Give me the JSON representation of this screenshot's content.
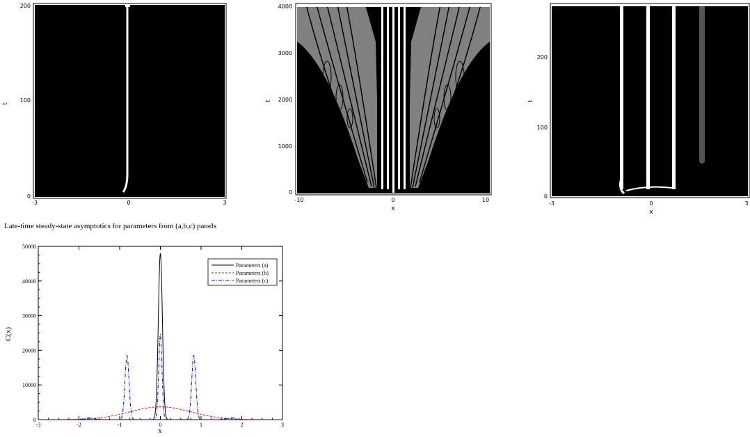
{
  "caption": "Late-time steady-state asymptotics for parameters from (a,b,c) panels",
  "panels": {
    "a": {
      "ylabel": "t",
      "xticks": [
        "-3",
        "0",
        "3"
      ],
      "yticks": [
        "0",
        "100",
        "200"
      ]
    },
    "b": {
      "xlabel": "x",
      "ylabel": "t",
      "xticks": [
        "-10",
        "0",
        "10"
      ],
      "yticks": [
        "0",
        "1000",
        "2000",
        "3000",
        "4000"
      ]
    },
    "c": {
      "xlabel": "x",
      "ylabel": "t",
      "xticks": [
        "-3",
        "0",
        "3"
      ],
      "yticks": [
        "0",
        "100",
        "200"
      ]
    }
  },
  "chart_data": [
    {
      "type": "heatmap",
      "panel": "a",
      "xlim": [
        -3,
        3
      ],
      "ylim": [
        0,
        200
      ],
      "ylabel": "t",
      "description_colors": {
        "background": "#000000",
        "feature": "#ffffff"
      }
    },
    {
      "type": "heatmap",
      "panel": "b",
      "xlim": [
        -10,
        10
      ],
      "ylim": [
        0,
        4000
      ],
      "xlabel": "x",
      "ylabel": "t"
    },
    {
      "type": "heatmap",
      "panel": "c",
      "xlim": [
        -3,
        3
      ],
      "ylim": [
        0,
        280
      ],
      "xlabel": "x",
      "ylabel": "t"
    },
    {
      "type": "line",
      "xlabel": "x",
      "ylabel": "C(x)",
      "xlim": [
        -3,
        3
      ],
      "ylim": [
        0,
        50000
      ],
      "xticks": [
        "-3",
        "-2",
        "-1",
        "0",
        "1",
        "2",
        "3"
      ],
      "yticks": [
        "0",
        "10000",
        "20000",
        "30000",
        "40000",
        "50000"
      ],
      "legend_position": "top-right",
      "series": [
        {
          "name": "Parameters (a)",
          "color": "#000000",
          "style": "solid",
          "peaks": [
            {
              "center": 0,
              "height": 48000,
              "width": 0.05
            }
          ]
        },
        {
          "name": "Parameters (b)",
          "color": "#ff0000",
          "style": "dashed",
          "peaks": [
            {
              "center": 0,
              "height": 3700,
              "width": 0.75
            }
          ]
        },
        {
          "name": "Parameters (c)",
          "color": "#0000ff",
          "style": "dashdot",
          "peaks": [
            {
              "center": 0,
              "height": 24500,
              "width": 0.04
            },
            {
              "center": -0.82,
              "height": 18500,
              "width": 0.05
            },
            {
              "center": 0.82,
              "height": 18500,
              "width": 0.05
            },
            {
              "center": -1.75,
              "height": 500,
              "width": 0.12
            },
            {
              "center": 1.75,
              "height": 500,
              "width": 0.12
            }
          ]
        }
      ]
    }
  ]
}
